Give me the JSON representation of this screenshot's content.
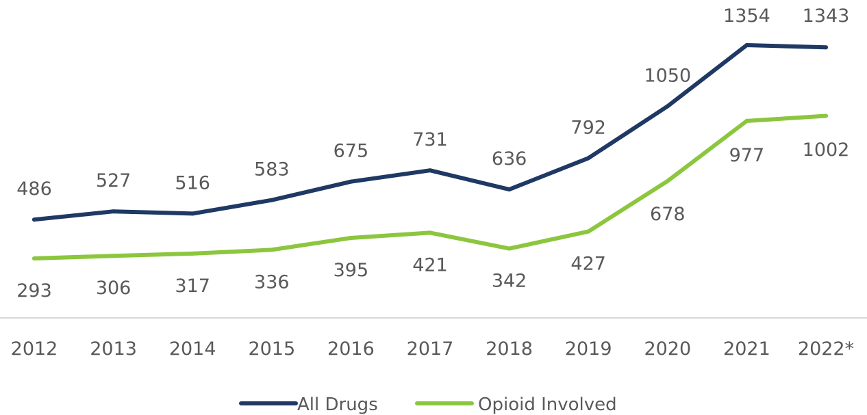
{
  "chart_data": {
    "type": "line",
    "title": "",
    "xlabel": "",
    "ylabel": "",
    "categories": [
      "2012",
      "2013",
      "2014",
      "2015",
      "2016",
      "2017",
      "2018",
      "2019",
      "2020",
      "2021",
      "2022*"
    ],
    "series": [
      {
        "name": "All Drugs",
        "color": "#1f3864",
        "values": [
          486,
          527,
          516,
          583,
          675,
          731,
          636,
          792,
          1050,
          1354,
          1343
        ]
      },
      {
        "name": "Opioid Involved",
        "color": "#8cc63f",
        "values": [
          293,
          306,
          317,
          336,
          395,
          421,
          342,
          427,
          678,
          977,
          1002
        ]
      }
    ],
    "data_labels": true,
    "grid": false,
    "legend_position": "bottom-center",
    "axis_line_color": "#d9d9d9"
  }
}
